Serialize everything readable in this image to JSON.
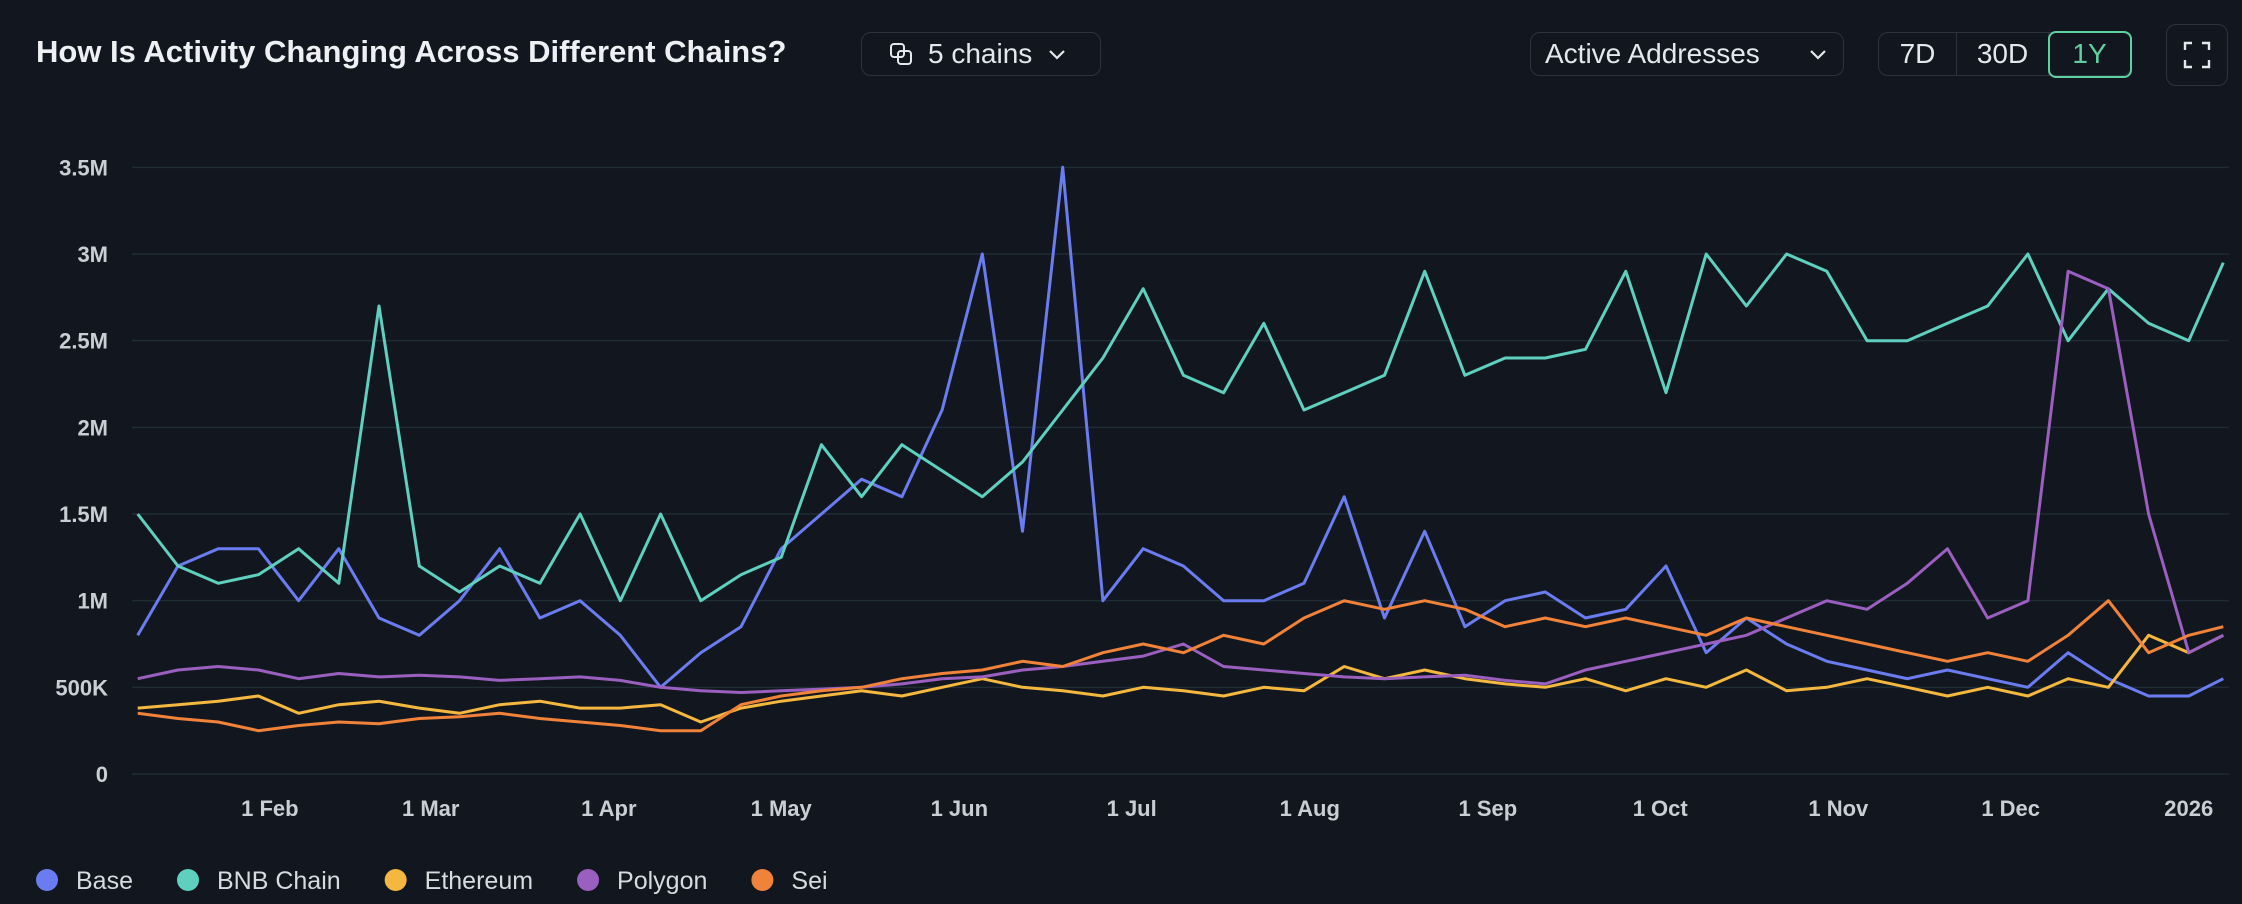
{
  "chart_data": {
    "type": "line",
    "title": "How Is Activity Changing Across Different Chains?",
    "x": [
      8,
      15,
      22,
      29,
      36,
      43,
      50,
      57,
      64,
      71,
      78,
      85,
      92,
      99,
      106,
      113,
      120,
      127,
      134,
      141,
      148,
      155,
      162,
      169,
      176,
      183,
      190,
      197,
      204,
      211,
      218,
      225,
      232,
      239,
      246,
      253,
      260,
      267,
      274,
      281,
      288,
      295,
      302,
      309,
      316,
      323,
      330,
      337,
      344,
      351,
      358,
      365,
      371
    ],
    "xlim": [
      7,
      372
    ],
    "xticks": [
      {
        "value": 31,
        "label": "1 Feb"
      },
      {
        "value": 59,
        "label": "1 Mar"
      },
      {
        "value": 90,
        "label": "1 Apr"
      },
      {
        "value": 120,
        "label": "1 May"
      },
      {
        "value": 151,
        "label": "1 Jun"
      },
      {
        "value": 181,
        "label": "1 Jul"
      },
      {
        "value": 212,
        "label": "1 Aug"
      },
      {
        "value": 243,
        "label": "1 Sep"
      },
      {
        "value": 273,
        "label": "1 Oct"
      },
      {
        "value": 304,
        "label": "1 Nov"
      },
      {
        "value": 334,
        "label": "1 Dec"
      },
      {
        "value": 365,
        "label": "2026"
      }
    ],
    "ylim": [
      0,
      3600000
    ],
    "yticks": [
      0,
      {
        "value": 500000,
        "label": "500K"
      },
      {
        "value": 1000000,
        "label": "1M"
      },
      {
        "value": 1500000,
        "label": "1.5M"
      },
      {
        "value": 2000000,
        "label": "2M"
      },
      {
        "value": 2500000,
        "label": "2.5M"
      },
      {
        "value": 3000000,
        "label": "3M"
      },
      {
        "value": 3500000,
        "label": "3.5M"
      }
    ],
    "grid": true,
    "legend": "bottom-left",
    "series": [
      {
        "name": "Base",
        "color": "#6b7cf0",
        "values": [
          800000,
          1200000,
          1300000,
          1300000,
          1000000,
          1300000,
          900000,
          800000,
          1000000,
          1300000,
          900000,
          1000000,
          800000,
          500000,
          700000,
          850000,
          1300000,
          1500000,
          1700000,
          1600000,
          2100000,
          3000000,
          1400000,
          3500000,
          1000000,
          1300000,
          1200000,
          1000000,
          1000000,
          1100000,
          1600000,
          900000,
          1400000,
          850000,
          1000000,
          1050000,
          900000,
          950000,
          1200000,
          700000,
          900000,
          750000,
          650000,
          600000,
          550000,
          600000,
          550000,
          500000,
          700000,
          550000,
          450000,
          450000,
          550000
        ]
      },
      {
        "name": "BNB Chain",
        "color": "#5fd0bf",
        "values": [
          1500000,
          1200000,
          1100000,
          1150000,
          1300000,
          1100000,
          2700000,
          1200000,
          1050000,
          1200000,
          1100000,
          1500000,
          1000000,
          1500000,
          1000000,
          1150000,
          1250000,
          1900000,
          1600000,
          1900000,
          1750000,
          1600000,
          1800000,
          2100000,
          2400000,
          2800000,
          2300000,
          2200000,
          2600000,
          2100000,
          2200000,
          2300000,
          2900000,
          2300000,
          2400000,
          2400000,
          2450000,
          2900000,
          2200000,
          3000000,
          2700000,
          3000000,
          2900000,
          2500000,
          2500000,
          2600000,
          2700000,
          3000000,
          2500000,
          2800000,
          2600000,
          2500000,
          2950000
        ]
      },
      {
        "name": "Ethereum",
        "color": "#f4b740",
        "values": [
          380000,
          400000,
          420000,
          450000,
          350000,
          400000,
          420000,
          380000,
          350000,
          400000,
          420000,
          380000,
          380000,
          400000,
          300000,
          380000,
          420000,
          450000,
          480000,
          450000,
          500000,
          550000,
          500000,
          480000,
          450000,
          500000,
          480000,
          450000,
          500000,
          480000,
          620000,
          550000,
          600000,
          550000,
          520000,
          500000,
          550000,
          480000,
          550000,
          500000,
          600000,
          480000,
          500000,
          550000,
          500000,
          450000,
          500000,
          450000,
          550000,
          500000,
          800000,
          700000,
          800000
        ]
      },
      {
        "name": "Polygon",
        "color": "#9b5fc0",
        "values": [
          550000,
          600000,
          620000,
          600000,
          550000,
          580000,
          560000,
          570000,
          560000,
          540000,
          550000,
          560000,
          540000,
          500000,
          480000,
          470000,
          480000,
          490000,
          500000,
          520000,
          550000,
          560000,
          600000,
          620000,
          650000,
          680000,
          750000,
          620000,
          600000,
          580000,
          560000,
          550000,
          560000,
          570000,
          540000,
          520000,
          600000,
          650000,
          700000,
          750000,
          800000,
          900000,
          1000000,
          950000,
          1100000,
          1300000,
          900000,
          1000000,
          2900000,
          2800000,
          1500000,
          700000,
          800000
        ]
      },
      {
        "name": "Sei",
        "color": "#f0823a",
        "values": [
          350000,
          320000,
          300000,
          250000,
          280000,
          300000,
          290000,
          320000,
          330000,
          350000,
          320000,
          300000,
          280000,
          250000,
          250000,
          400000,
          450000,
          480000,
          500000,
          550000,
          580000,
          600000,
          650000,
          620000,
          700000,
          750000,
          700000,
          800000,
          750000,
          900000,
          1000000,
          950000,
          1000000,
          950000,
          850000,
          900000,
          850000,
          900000,
          850000,
          800000,
          900000,
          850000,
          800000,
          750000,
          700000,
          650000,
          700000,
          650000,
          800000,
          1000000,
          700000,
          800000,
          850000
        ]
      }
    ]
  },
  "controls": {
    "chain_selector": "5 chains",
    "metric": "Active Addresses",
    "ranges": [
      "7D",
      "30D",
      "1Y"
    ],
    "selected_range": "1Y"
  }
}
